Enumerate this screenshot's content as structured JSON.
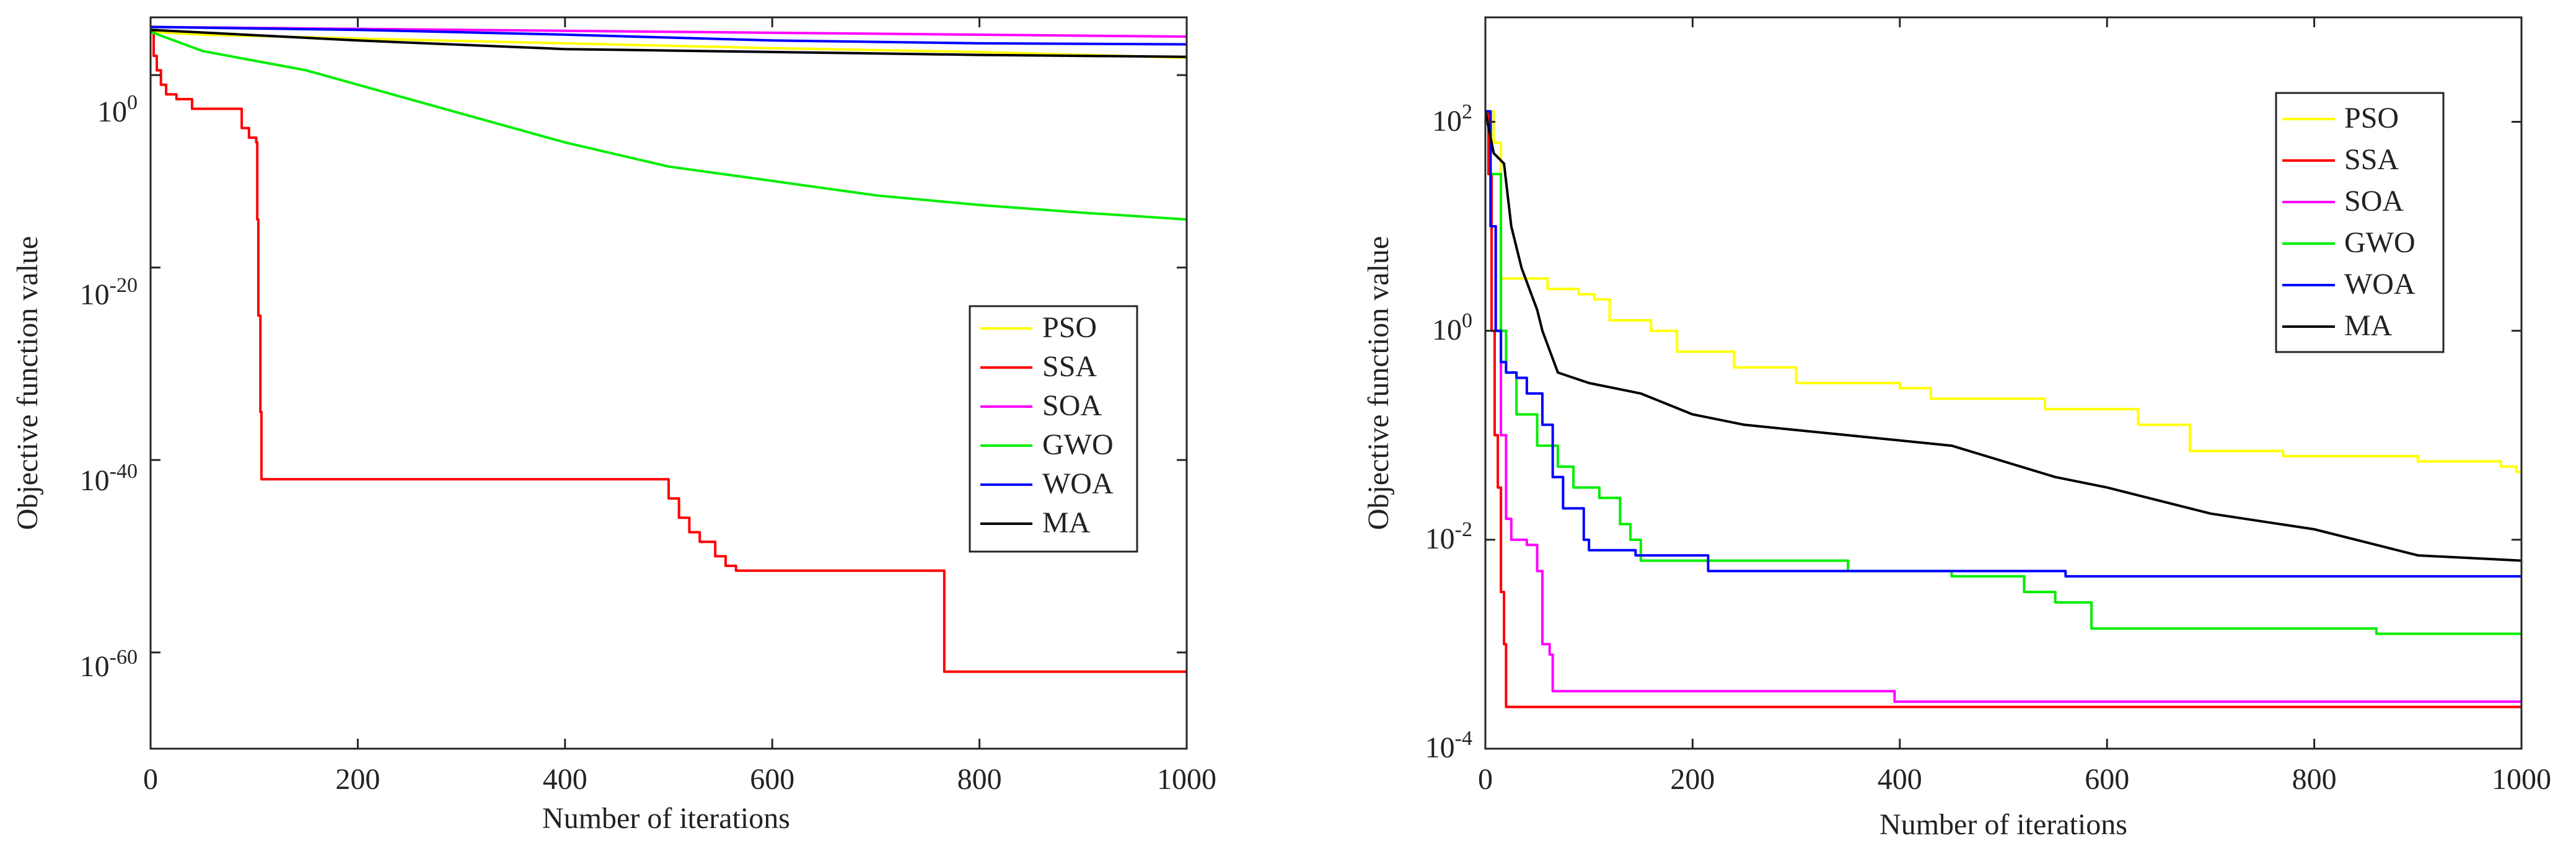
{
  "chart_data": [
    {
      "type": "line",
      "xlabel": "Number of iterations",
      "ylabel": "Objective function value",
      "xlim": [
        0,
        1000
      ],
      "ylim": [
        -70,
        6
      ],
      "yscale": "log",
      "x_ticks": [
        0,
        200,
        400,
        600,
        800,
        1000
      ],
      "x_tick_labels": [
        "0",
        "200",
        "400",
        "600",
        "800",
        "1000"
      ],
      "y_ticks": [
        0,
        -20,
        -40,
        -60
      ],
      "y_tick_labels": [
        {
          "base": "10",
          "exp": "0"
        },
        {
          "base": "10",
          "exp": "-20"
        },
        {
          "base": "10",
          "exp": "-40"
        },
        {
          "base": "10",
          "exp": "-60"
        }
      ],
      "grid": false,
      "legend_position": "lower-right",
      "series": [
        {
          "name": "PSO",
          "color": "#ffff00",
          "step": false,
          "points": [
            [
              0,
              4.5
            ],
            [
              50,
              4.2
            ],
            [
              200,
              3.8
            ],
            [
              400,
              3.3
            ],
            [
              600,
              2.8
            ],
            [
              800,
              2.4
            ],
            [
              1000,
              1.8
            ]
          ]
        },
        {
          "name": "SSA",
          "color": "#ff0000",
          "step": true,
          "points": [
            [
              0,
              4.5
            ],
            [
              3,
              2
            ],
            [
              6,
              0.5
            ],
            [
              10,
              -1
            ],
            [
              15,
              -2
            ],
            [
              25,
              -2.5
            ],
            [
              40,
              -3.5
            ],
            [
              85,
              -3.5
            ],
            [
              88,
              -5.5
            ],
            [
              95,
              -6.5
            ],
            [
              102,
              -7
            ],
            [
              103,
              -15
            ],
            [
              104,
              -25
            ],
            [
              106,
              -35
            ],
            [
              107,
              -42
            ],
            [
              490,
              -42
            ],
            [
              500,
              -44
            ],
            [
              510,
              -46
            ],
            [
              520,
              -47.5
            ],
            [
              530,
              -48.5
            ],
            [
              545,
              -50
            ],
            [
              555,
              -51
            ],
            [
              565,
              -51.5
            ],
            [
              765,
              -51.5
            ],
            [
              766,
              -62
            ],
            [
              1000,
              -62
            ]
          ]
        },
        {
          "name": "SOA",
          "color": "#ff00ff",
          "step": false,
          "points": [
            [
              0,
              5
            ],
            [
              1000,
              4
            ]
          ]
        },
        {
          "name": "GWO",
          "color": "#00ee00",
          "step": false,
          "points": [
            [
              0,
              4.5
            ],
            [
              50,
              2.5
            ],
            [
              100,
              1.5
            ],
            [
              150,
              0.5
            ],
            [
              200,
              -1
            ],
            [
              300,
              -4
            ],
            [
              400,
              -7
            ],
            [
              500,
              -9.5
            ],
            [
              600,
              -11
            ],
            [
              700,
              -12.5
            ],
            [
              800,
              -13.5
            ],
            [
              900,
              -14.3
            ],
            [
              1000,
              -15
            ]
          ]
        },
        {
          "name": "WOA",
          "color": "#0000ff",
          "step": false,
          "points": [
            [
              0,
              5
            ],
            [
              200,
              4.7
            ],
            [
              400,
              4.2
            ],
            [
              600,
              3.6
            ],
            [
              800,
              3.3
            ],
            [
              1000,
              3.2
            ]
          ]
        },
        {
          "name": "MA",
          "color": "#000000",
          "step": false,
          "points": [
            [
              0,
              4.7
            ],
            [
              200,
              3.6
            ],
            [
              400,
              2.7
            ],
            [
              600,
              2.4
            ],
            [
              800,
              2.1
            ],
            [
              1000,
              1.9
            ]
          ]
        }
      ]
    },
    {
      "type": "line",
      "xlabel": "Number of iterations",
      "ylabel": "Objective function value",
      "xlim": [
        0,
        1000
      ],
      "ylim": [
        -4,
        3
      ],
      "yscale": "log",
      "x_ticks": [
        0,
        200,
        400,
        600,
        800,
        1000
      ],
      "x_tick_labels": [
        "0",
        "200",
        "400",
        "600",
        "800",
        "1000"
      ],
      "y_ticks": [
        2,
        0,
        -2,
        -4
      ],
      "y_tick_labels": [
        {
          "base": "10",
          "exp": "2"
        },
        {
          "base": "10",
          "exp": "0"
        },
        {
          "base": "10",
          "exp": "-2"
        },
        {
          "base": "10",
          "exp": "-4"
        }
      ],
      "grid": false,
      "legend_position": "upper-right",
      "series": [
        {
          "name": "PSO",
          "color": "#ffff00",
          "step": true,
          "points": [
            [
              0,
              2.1
            ],
            [
              8,
              1.8
            ],
            [
              15,
              0.5
            ],
            [
              60,
              0.4
            ],
            [
              90,
              0.35
            ],
            [
              105,
              0.3
            ],
            [
              120,
              0.1
            ],
            [
              160,
              0
            ],
            [
              185,
              -0.2
            ],
            [
              240,
              -0.35
            ],
            [
              300,
              -0.5
            ],
            [
              400,
              -0.55
            ],
            [
              430,
              -0.65
            ],
            [
              540,
              -0.75
            ],
            [
              630,
              -0.9
            ],
            [
              680,
              -1.15
            ],
            [
              770,
              -1.2
            ],
            [
              900,
              -1.25
            ],
            [
              980,
              -1.3
            ],
            [
              995,
              -1.35
            ],
            [
              1000,
              -1.35
            ]
          ]
        },
        {
          "name": "SSA",
          "color": "#ff0000",
          "step": true,
          "points": [
            [
              0,
              2.1
            ],
            [
              3,
              1.5
            ],
            [
              6,
              0
            ],
            [
              9,
              -1
            ],
            [
              12,
              -1.5
            ],
            [
              15,
              -2.5
            ],
            [
              18,
              -3
            ],
            [
              20,
              -3.6
            ],
            [
              1000,
              -3.6
            ]
          ]
        },
        {
          "name": "SOA",
          "color": "#ff00ff",
          "step": true,
          "points": [
            [
              0,
              2.1
            ],
            [
              5,
              1
            ],
            [
              10,
              0
            ],
            [
              15,
              -1
            ],
            [
              20,
              -1.8
            ],
            [
              25,
              -2
            ],
            [
              40,
              -2.05
            ],
            [
              50,
              -2.3
            ],
            [
              55,
              -3
            ],
            [
              62,
              -3.1
            ],
            [
              65,
              -3.45
            ],
            [
              390,
              -3.45
            ],
            [
              395,
              -3.55
            ],
            [
              1000,
              -3.55
            ]
          ]
        },
        {
          "name": "GWO",
          "color": "#00ee00",
          "step": true,
          "points": [
            [
              0,
              2.1
            ],
            [
              5,
              1.5
            ],
            [
              15,
              0
            ],
            [
              20,
              -0.4
            ],
            [
              30,
              -0.8
            ],
            [
              50,
              -1.1
            ],
            [
              70,
              -1.3
            ],
            [
              85,
              -1.5
            ],
            [
              110,
              -1.6
            ],
            [
              130,
              -1.85
            ],
            [
              140,
              -2
            ],
            [
              150,
              -2.2
            ],
            [
              350,
              -2.3
            ],
            [
              450,
              -2.35
            ],
            [
              520,
              -2.5
            ],
            [
              550,
              -2.6
            ],
            [
              585,
              -2.85
            ],
            [
              860,
              -2.9
            ],
            [
              1000,
              -2.9
            ]
          ]
        },
        {
          "name": "WOA",
          "color": "#0000ff",
          "step": true,
          "points": [
            [
              0,
              2.1
            ],
            [
              5,
              1
            ],
            [
              10,
              0
            ],
            [
              15,
              -0.3
            ],
            [
              20,
              -0.4
            ],
            [
              30,
              -0.45
            ],
            [
              40,
              -0.6
            ],
            [
              55,
              -0.9
            ],
            [
              65,
              -1.4
            ],
            [
              75,
              -1.7
            ],
            [
              95,
              -2
            ],
            [
              100,
              -2.1
            ],
            [
              145,
              -2.15
            ],
            [
              215,
              -2.3
            ],
            [
              560,
              -2.35
            ],
            [
              1000,
              -2.35
            ]
          ]
        },
        {
          "name": "MA",
          "color": "#000000",
          "step": false,
          "points": [
            [
              0,
              2.1
            ],
            [
              8,
              1.7
            ],
            [
              18,
              1.6
            ],
            [
              25,
              1
            ],
            [
              35,
              0.6
            ],
            [
              50,
              0.2
            ],
            [
              55,
              0
            ],
            [
              70,
              -0.4
            ],
            [
              100,
              -0.5
            ],
            [
              150,
              -0.6
            ],
            [
              200,
              -0.8
            ],
            [
              250,
              -0.9
            ],
            [
              350,
              -1
            ],
            [
              450,
              -1.1
            ],
            [
              550,
              -1.4
            ],
            [
              600,
              -1.5
            ],
            [
              700,
              -1.75
            ],
            [
              800,
              -1.9
            ],
            [
              900,
              -2.15
            ],
            [
              1000,
              -2.2
            ]
          ]
        }
      ]
    }
  ]
}
